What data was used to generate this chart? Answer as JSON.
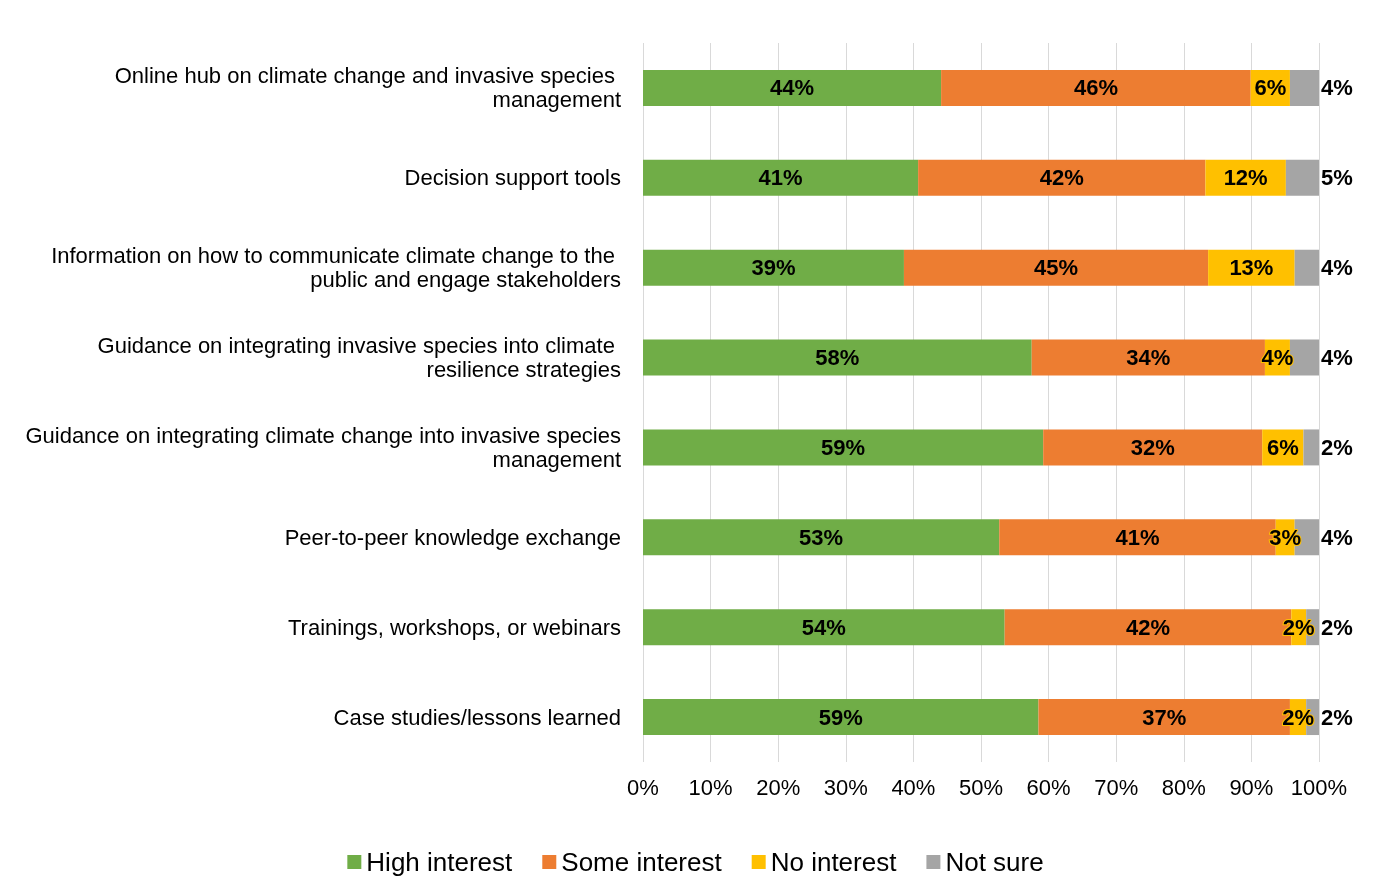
{
  "chart_data": {
    "type": "bar",
    "orientation": "horizontal",
    "stacked": true,
    "categories": [
      "Online hub on climate change and invasive species management",
      "Decision support tools",
      "Information on how to communicate climate change to the public and engage stakeholders",
      "Guidance on integrating invasive species into climate resilience strategies",
      "Guidance on integrating climate change into invasive species management",
      "Peer-to-peer knowledge exchange",
      "Trainings, workshops, or webinars",
      "Case studies/lessons learned"
    ],
    "series": [
      {
        "name": "High interest",
        "color": "#70ad47",
        "values": [
          44.1,
          40.7,
          38.6,
          57.5,
          59.2,
          52.7,
          53.5,
          58.5
        ],
        "value_labels": [
          "44%",
          "41%",
          "39%",
          "58%",
          "59%",
          "53%",
          "54%",
          "59%"
        ]
      },
      {
        "name": "Some interest",
        "color": "#ed7d31",
        "values": [
          45.8,
          42.5,
          45.0,
          34.5,
          32.4,
          40.9,
          42.4,
          37.2
        ],
        "value_labels": [
          "46%",
          "42%",
          "45%",
          "34%",
          "32%",
          "41%",
          "42%",
          "37%"
        ]
      },
      {
        "name": "No interest",
        "color": "#ffc000",
        "values": [
          5.8,
          11.9,
          12.8,
          3.7,
          6.1,
          2.8,
          2.2,
          2.4
        ],
        "value_labels": [
          "6%",
          "12%",
          "13%",
          "4%",
          "6%",
          "3%",
          "2%",
          "2%"
        ]
      },
      {
        "name": "Not sure",
        "color": "#a5a5a5",
        "values": [
          4.3,
          4.9,
          3.6,
          4.3,
          2.3,
          3.6,
          1.9,
          1.9
        ],
        "value_labels": [
          "4%",
          "5%",
          "4%",
          "4%",
          "2%",
          "4%",
          "2%",
          "2%"
        ]
      }
    ],
    "xlim": [
      0,
      100
    ],
    "xticks": [
      {
        "value": 0,
        "label": "0%"
      },
      {
        "value": 10,
        "label": "10%"
      },
      {
        "value": 20,
        "label": "20%"
      },
      {
        "value": 30,
        "label": "30%"
      },
      {
        "value": 40,
        "label": "40%"
      },
      {
        "value": 50,
        "label": "50%"
      },
      {
        "value": 60,
        "label": "60%"
      },
      {
        "value": 70,
        "label": "70%"
      },
      {
        "value": 80,
        "label": "80%"
      },
      {
        "value": 90,
        "label": "90%"
      },
      {
        "value": 100,
        "label": "100%"
      }
    ],
    "grid": "x",
    "legend": "bottom"
  }
}
